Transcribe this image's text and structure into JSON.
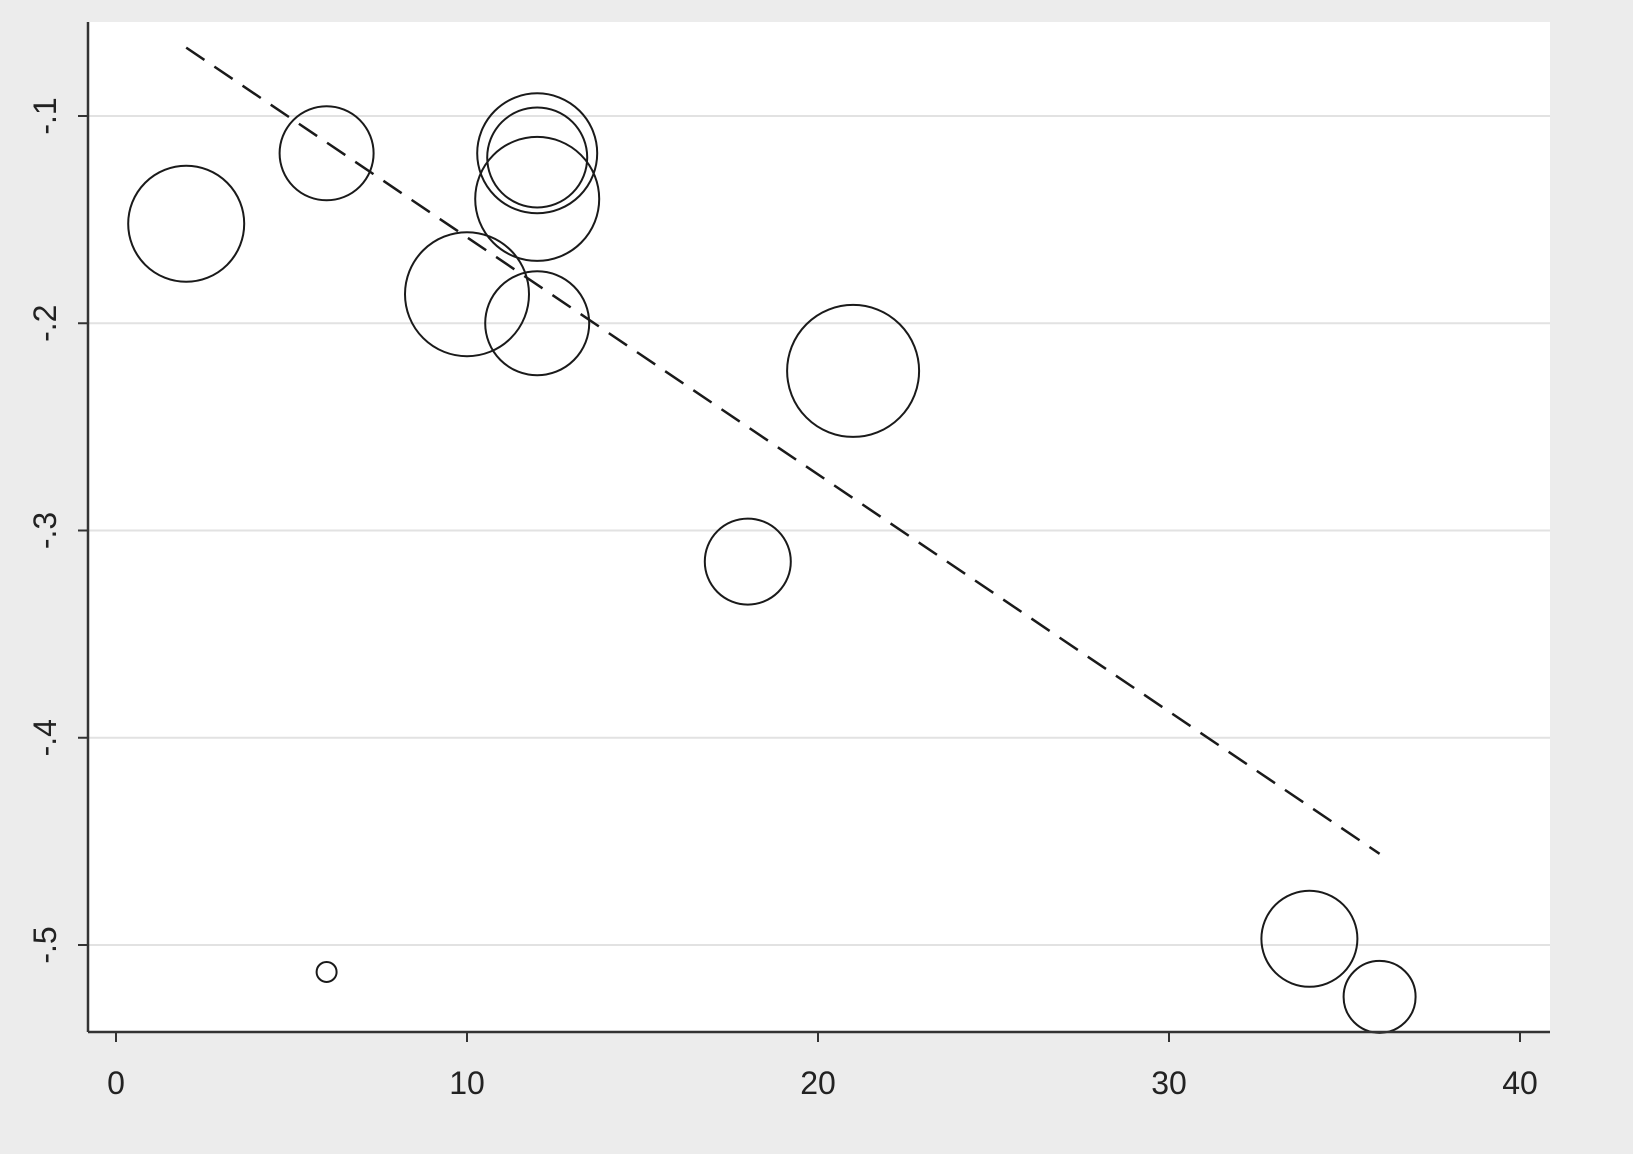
{
  "chart_data": {
    "type": "scatter",
    "title": "",
    "xlabel": "",
    "ylabel": "",
    "xlim": [
      0,
      40
    ],
    "ylim": [
      -0.54,
      -0.07
    ],
    "grid": true,
    "x_ticks": [
      0,
      10,
      20,
      30,
      40
    ],
    "x_tick_labels": [
      "0",
      "10",
      "20",
      "30",
      "40"
    ],
    "y_ticks": [
      -0.1,
      -0.2,
      -0.3,
      -0.4,
      -0.5
    ],
    "y_tick_labels": [
      "-.1",
      "-.2",
      "-.3",
      "-.4",
      "-.5"
    ],
    "colors": {
      "plot_background": "#ffffff",
      "outer_background": "#ececec",
      "grid": "#e2e2e2",
      "marker": "#1a1a1a",
      "fit_line": "#1a1a1a"
    },
    "series": [
      {
        "marker": "hollow-circle",
        "points": [
          {
            "x": 2,
            "y": -0.152,
            "weight": 58
          },
          {
            "x": 6,
            "y": -0.118,
            "weight": 47
          },
          {
            "x": 6,
            "y": -0.513,
            "weight": 10
          },
          {
            "x": 10,
            "y": -0.186,
            "weight": 62
          },
          {
            "x": 12,
            "y": -0.118,
            "weight": 60
          },
          {
            "x": 12,
            "y": -0.12,
            "weight": 50
          },
          {
            "x": 12,
            "y": -0.14,
            "weight": 62
          },
          {
            "x": 12,
            "y": -0.2,
            "weight": 52
          },
          {
            "x": 18,
            "y": -0.315,
            "weight": 43
          },
          {
            "x": 21,
            "y": -0.223,
            "weight": 66
          },
          {
            "x": 34,
            "y": -0.497,
            "weight": 48
          },
          {
            "x": 36,
            "y": -0.525,
            "weight": 36
          }
        ]
      }
    ],
    "fit_line": {
      "style": "dashed",
      "points": [
        {
          "x": 2,
          "y": -0.067
        },
        {
          "x": 36,
          "y": -0.456
        }
      ]
    }
  }
}
